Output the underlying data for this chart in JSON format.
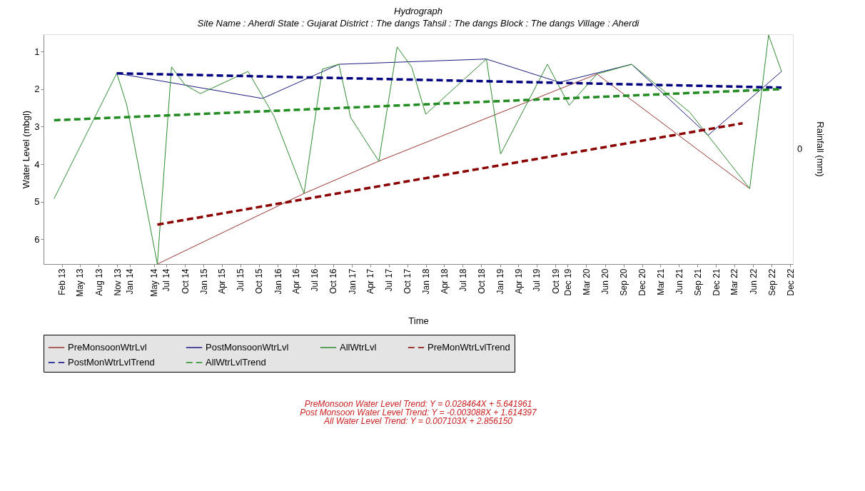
{
  "chart_data": {
    "type": "line",
    "title": "Hydrograph",
    "subtitle": "Site Name : Aherdi  State : Gujarat District : The dangs  Tahsil : The dangs  Block : The dangs Village : Aherdi",
    "xlabel": "Time",
    "ylabel": "Water Level (mbgl)",
    "y2label": "Rainfall (mm)",
    "xlim": [
      "2012-11-03",
      "2022-12-15"
    ],
    "ylim": [
      6.66,
      0.54
    ],
    "yticks": [
      1,
      2,
      3,
      4,
      5,
      6
    ],
    "xticks": [
      {
        "value": "2013-02",
        "label": "Feb 13"
      },
      {
        "value": "2013-05",
        "label": "May 13"
      },
      {
        "value": "2013-08",
        "label": "Aug 13"
      },
      {
        "value": "2013-11",
        "label": "Nov 13"
      },
      {
        "value": "2014-01",
        "label": "Jan 14"
      },
      {
        "value": "2014-05",
        "label": "May 14"
      },
      {
        "value": "2014-07",
        "label": "Jul 14"
      },
      {
        "value": "2014-10",
        "label": "Oct 14"
      },
      {
        "value": "2015-01",
        "label": "Jan 15"
      },
      {
        "value": "2015-04",
        "label": "Apr 15"
      },
      {
        "value": "2015-07",
        "label": "Jul 15"
      },
      {
        "value": "2015-10",
        "label": "Oct 15"
      },
      {
        "value": "2016-01",
        "label": "Jan 16"
      },
      {
        "value": "2016-04",
        "label": "Apr 16"
      },
      {
        "value": "2016-07",
        "label": "Jul 16"
      },
      {
        "value": "2016-10",
        "label": "Oct 16"
      },
      {
        "value": "2017-01",
        "label": "Jan 17"
      },
      {
        "value": "2017-04",
        "label": "Apr 17"
      },
      {
        "value": "2017-07",
        "label": "Jul 17"
      },
      {
        "value": "2017-10",
        "label": "Oct 17"
      },
      {
        "value": "2018-01",
        "label": "Jan 18"
      },
      {
        "value": "2018-04",
        "label": "Apr 18"
      },
      {
        "value": "2018-07",
        "label": "Jul 18"
      },
      {
        "value": "2018-10",
        "label": "Oct 18"
      },
      {
        "value": "2019-01",
        "label": "Jan 19"
      },
      {
        "value": "2019-04",
        "label": "Apr 19"
      },
      {
        "value": "2019-07",
        "label": "Jul 19"
      },
      {
        "value": "2019-10",
        "label": "Oct 19"
      },
      {
        "value": "2019-12",
        "label": "Dec 19"
      },
      {
        "value": "2020-03",
        "label": "Mar 20"
      },
      {
        "value": "2020-06",
        "label": "Jun 20"
      },
      {
        "value": "2020-09",
        "label": "Sep 20"
      },
      {
        "value": "2020-12",
        "label": "Dec 20"
      },
      {
        "value": "2021-03",
        "label": "Mar 21"
      },
      {
        "value": "2021-06",
        "label": "Jun 21"
      },
      {
        "value": "2021-09",
        "label": "Sep 21"
      },
      {
        "value": "2021-12",
        "label": "Dec 21"
      },
      {
        "value": "2022-03",
        "label": "Mar 22"
      },
      {
        "value": "2022-06",
        "label": "Jun 22"
      },
      {
        "value": "2022-09",
        "label": "Sep 22"
      },
      {
        "value": "2022-12",
        "label": "Dec 22"
      }
    ],
    "series": [
      {
        "name": "PreMonsoonWtrLvl",
        "color": "#993333",
        "x": [
          "2014-05-18",
          "2016-05-10",
          "2017-05-14",
          "2020-04-23",
          "2022-05-16"
        ],
        "values": [
          6.66,
          4.78,
          3.92,
          1.6,
          4.65
        ]
      },
      {
        "name": "PostMonsoonWtrLvl",
        "color": "#1a1a80",
        "x": [
          "2013-10-30",
          "2015-10-18",
          "2016-10-29",
          "2018-10-26",
          "2019-10-21",
          "2020-10-11",
          "2021-10-23",
          "2022-10-20"
        ],
        "values": [
          1.58,
          2.25,
          1.34,
          1.2,
          1.82,
          1.34,
          3.23,
          1.53
        ]
      },
      {
        "name": "AllWtrLvl",
        "color": "#2e8b2e",
        "x": [
          "2012-12-25",
          "2013-10-30",
          "2013-12-18",
          "2014-05-18",
          "2014-07-27",
          "2014-09-30",
          "2014-12-16",
          "2015-08-08",
          "2015-12-15",
          "2016-05-10",
          "2016-08-08",
          "2016-10-29",
          "2016-12-26",
          "2017-05-14",
          "2017-08-12",
          "2017-10-23",
          "2017-12-31",
          "2018-10-26",
          "2019-01-04",
          "2019-08-23",
          "2019-12-08",
          "2020-04-23",
          "2020-10-11",
          "2021-07-25",
          "2022-05-16",
          "2022-08-17",
          "2022-10-20"
        ],
        "values": [
          4.92,
          1.58,
          2.42,
          6.66,
          1.41,
          1.88,
          2.12,
          1.53,
          2.73,
          4.78,
          1.47,
          1.34,
          2.76,
          3.92,
          0.88,
          1.42,
          2.67,
          1.2,
          3.73,
          1.34,
          2.43,
          1.6,
          1.34,
          2.62,
          4.65,
          0.56,
          1.53
        ]
      },
      {
        "name": "PreMonWtrLvlTrend",
        "color": "#8b0000",
        "line_style": "dashed",
        "x": [
          "2014-05-18",
          "2022-04-11"
        ],
        "values": [
          5.61,
          2.91
        ]
      },
      {
        "name": "PostMonWtrLvlTrend",
        "color": "#000080",
        "line_style": "dashed",
        "x": [
          "2013-10-30",
          "2022-10-20"
        ],
        "values": [
          1.58,
          1.96
        ]
      },
      {
        "name": "AllWtrLvlTrend",
        "color": "#228b22",
        "line_style": "dashed",
        "x": [
          "2012-12-25",
          "2022-10-20"
        ],
        "values": [
          2.83,
          2.0
        ]
      }
    ],
    "legend": "bottom",
    "annotations": [
      "0",
      "PreMonsoon Water Level Trend: Y = 0.028464X + 5.641961",
      "Post Monsoon Water Level Trend: Y = -0.003088X + 1.614397",
      "All Water Level Trend: Y = 0.007103X + 2.856150"
    ]
  }
}
